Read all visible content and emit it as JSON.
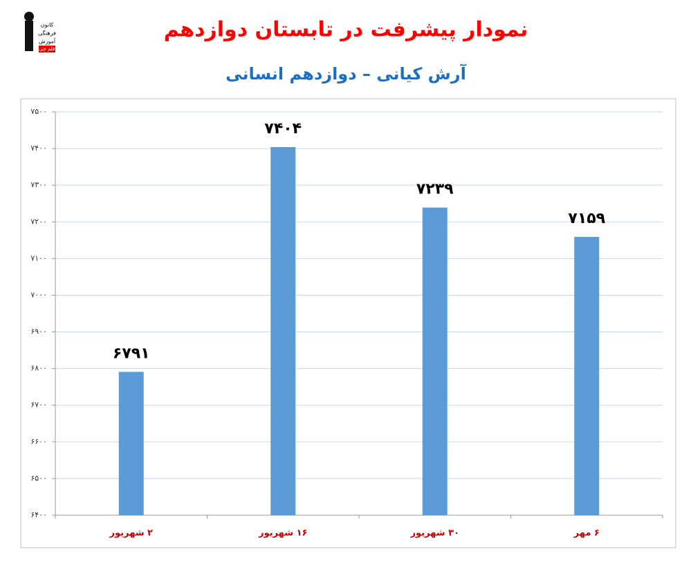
{
  "logo": {
    "lines": [
      "کانون",
      "فرهنگی",
      "آموزش"
    ],
    "badge": "قلم چی"
  },
  "chart_data": {
    "type": "bar",
    "title": "نمودار پیشرفت در تابستان دوازدهم",
    "subtitle": "آرش کیانی – دوازدهم انسانی",
    "categories": [
      "۲ شهریور",
      "۱۶ شهریور",
      "۳۰ شهریور",
      "۶ مهر"
    ],
    "values": [
      6791,
      7404,
      7239,
      7159
    ],
    "value_labels": [
      "۶۷۹۱",
      "۷۴۰۴",
      "۷۲۳۹",
      "۷۱۵۹"
    ],
    "color": "#5b9bd5",
    "ylim": [
      6400,
      7500
    ],
    "yticks": [
      {
        "value": 6400,
        "label": "۶۴۰۰"
      },
      {
        "value": 6500,
        "label": "۶۵۰۰"
      },
      {
        "value": 6600,
        "label": "۶۶۰۰"
      },
      {
        "value": 6700,
        "label": "۶۷۰۰"
      },
      {
        "value": 6800,
        "label": "۶۸۰۰"
      },
      {
        "value": 6900,
        "label": "۶۹۰۰"
      },
      {
        "value": 7000,
        "label": "۷۰۰۰"
      },
      {
        "value": 7100,
        "label": "۷۱۰۰"
      },
      {
        "value": 7200,
        "label": "۷۲۰۰"
      },
      {
        "value": 7300,
        "label": "۷۳۰۰"
      },
      {
        "value": 7400,
        "label": "۷۴۰۰"
      },
      {
        "value": 7500,
        "label": "۷۵۰۰"
      }
    ],
    "grid": true
  }
}
